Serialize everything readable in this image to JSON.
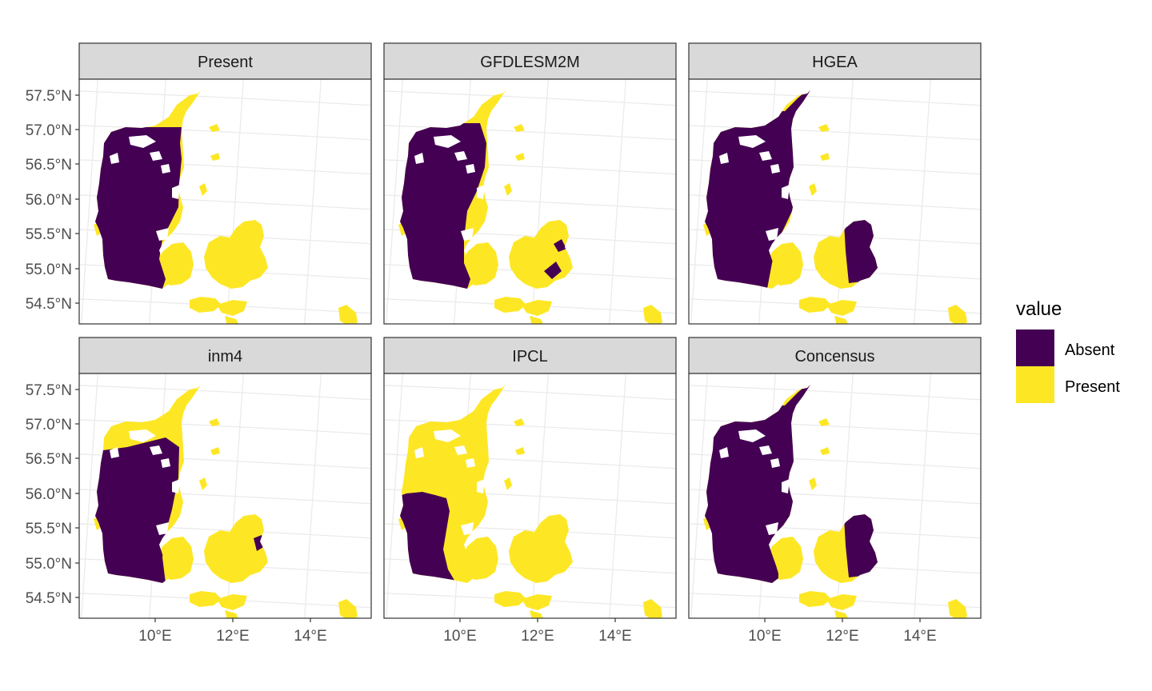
{
  "panels": [
    {
      "title": "Present",
      "pattern": "present"
    },
    {
      "title": "GFDLESM2M",
      "pattern": "gfdl"
    },
    {
      "title": "HGEA",
      "pattern": "hgea"
    },
    {
      "title": "inm4",
      "pattern": "inm4"
    },
    {
      "title": "IPCL",
      "pattern": "ipcl"
    },
    {
      "title": "Concensus",
      "pattern": "concensus"
    }
  ],
  "axes": {
    "y_ticks": [
      "57.5°N",
      "57.0°N",
      "56.5°N",
      "56.0°N",
      "55.5°N",
      "55.0°N",
      "54.5°N"
    ],
    "x_ticks": [
      "10°E",
      "12°E",
      "14°E"
    ]
  },
  "legend": {
    "title": "value",
    "items": [
      {
        "label": "Absent",
        "color": "#440154"
      },
      {
        "label": "Present",
        "color": "#FDE725"
      }
    ]
  },
  "colors": {
    "absent": "#440154",
    "present": "#FDE725",
    "strip": "#D9D9D9",
    "grid": "#EBEBEB",
    "border": "#333333"
  }
}
